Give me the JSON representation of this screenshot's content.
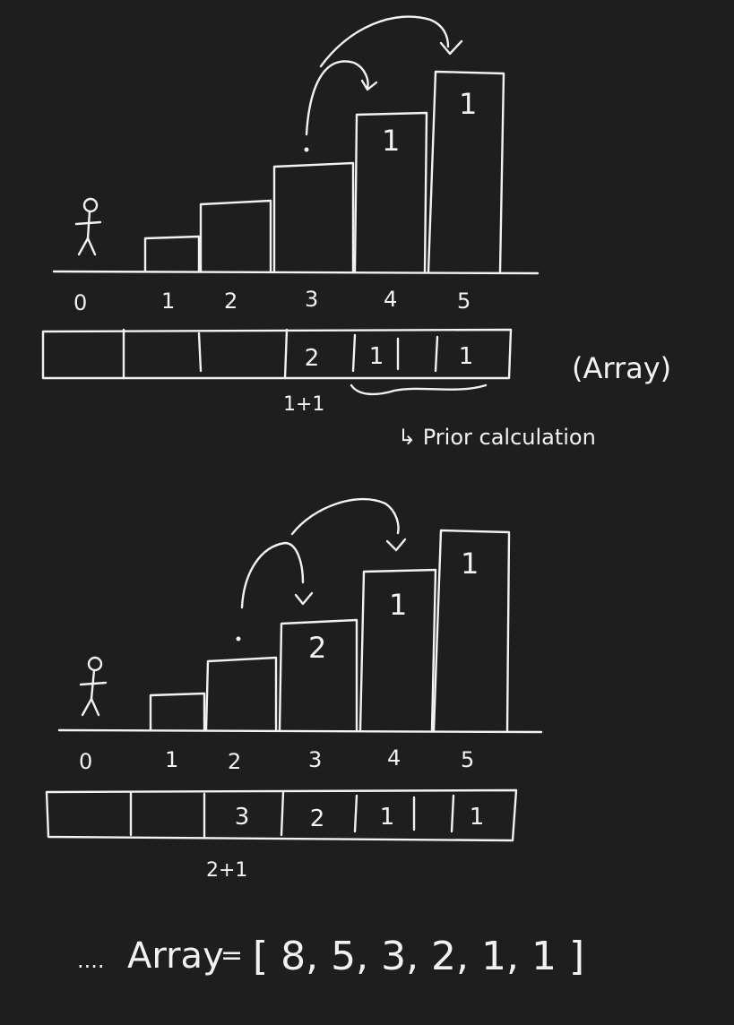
{
  "diagram_1": {
    "stair_labels": [
      "0",
      "1",
      "2",
      "3",
      "4",
      "5"
    ],
    "stair_values": [
      "1",
      "1"
    ],
    "array_cells": [
      "",
      "",
      "",
      "2",
      "1",
      "1"
    ],
    "sum_note": "1+1",
    "array_note": "(Array)",
    "prior_note": "↳ Prior calculation"
  },
  "diagram_2": {
    "stair_labels": [
      "0",
      "1",
      "2",
      "3",
      "4",
      "5"
    ],
    "stair_values": [
      "2",
      "1",
      "1"
    ],
    "array_cells": [
      "",
      "",
      "3",
      "2",
      "1",
      "1"
    ],
    "sum_note": "2+1"
  },
  "result": {
    "prefix": "....",
    "label": "Array",
    "equals": "=",
    "values_text": "[ 8, 5, 3, 2, 1, 1 ]"
  }
}
